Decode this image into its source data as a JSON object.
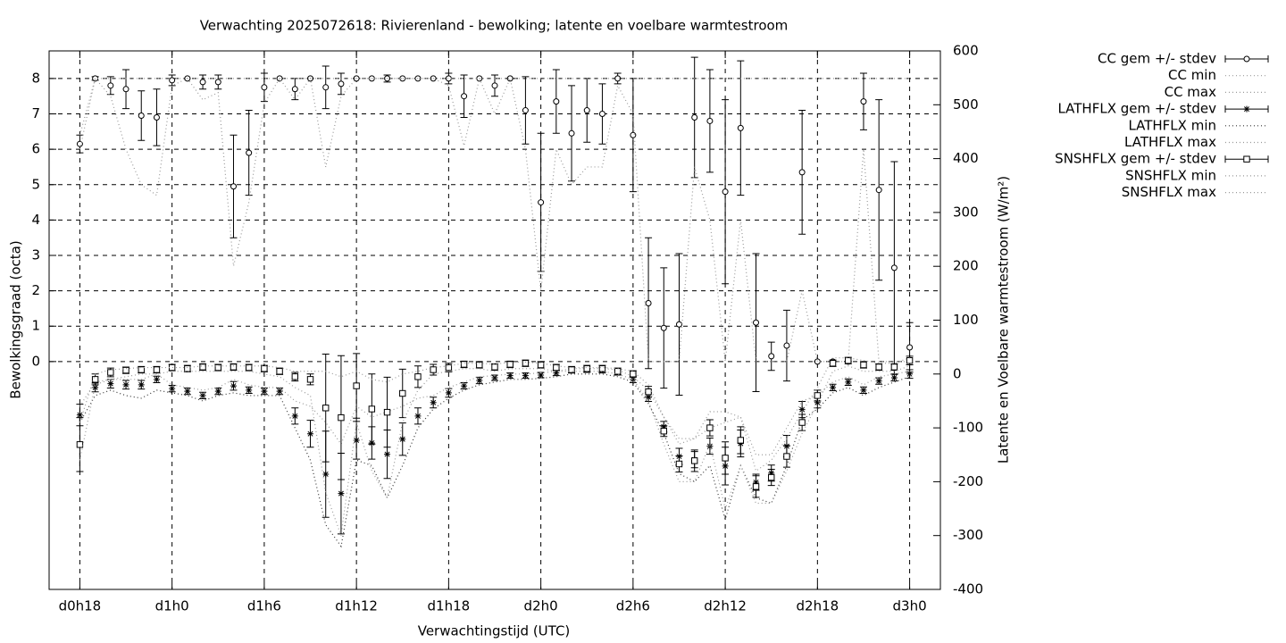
{
  "chart_data": {
    "type": "errorbar",
    "title": "Verwachting 2025072618: Rivierenland - bewolking; latente en voelbare warmtestroom",
    "xlabel": "Verwachtingstijd (UTC)",
    "ylabel": "Bewolkingsgraad (octa)",
    "y2label": "Latente en Voelbare warmtestroom (W/m²)",
    "grid": true,
    "xlim": [
      16,
      74
    ],
    "ylim": [
      -6.44,
      8.78
    ],
    "y2lim": [
      -400,
      600
    ],
    "xticks": [
      {
        "value": 18,
        "label": "d0h18"
      },
      {
        "value": 24,
        "label": "d1h0"
      },
      {
        "value": 30,
        "label": "d1h6"
      },
      {
        "value": 36,
        "label": "d1h12"
      },
      {
        "value": 42,
        "label": "d1h18"
      },
      {
        "value": 48,
        "label": "d2h0"
      },
      {
        "value": 54,
        "label": "d2h6"
      },
      {
        "value": 60,
        "label": "d2h12"
      },
      {
        "value": 66,
        "label": "d2h18"
      },
      {
        "value": 72,
        "label": "d3h0"
      }
    ],
    "yticks": [
      0,
      1,
      2,
      3,
      4,
      5,
      6,
      7,
      8
    ],
    "y2ticks": [
      -400,
      -300,
      -200,
      -100,
      0,
      100,
      200,
      300,
      400,
      500,
      600
    ],
    "x": [
      18,
      19,
      20,
      21,
      22,
      23,
      24,
      25,
      26,
      27,
      28,
      29,
      30,
      31,
      32,
      33,
      34,
      35,
      36,
      37,
      38,
      39,
      40,
      41,
      42,
      43,
      44,
      45,
      46,
      47,
      48,
      49,
      50,
      51,
      52,
      53,
      54,
      55,
      56,
      57,
      58,
      59,
      60,
      61,
      62,
      63,
      64,
      65,
      66,
      67,
      68,
      69,
      70,
      71,
      72
    ],
    "series": [
      {
        "name": "CC gem +/- stdev",
        "style": "errorbar",
        "marker": "circle",
        "color": "#000000",
        "axis": "y",
        "values": [
          6.15,
          8.0,
          7.8,
          7.7,
          6.95,
          6.9,
          7.95,
          8.0,
          7.9,
          7.9,
          4.95,
          5.9,
          7.75,
          8.0,
          7.7,
          8.0,
          7.75,
          7.85,
          8.0,
          8.0,
          8.0,
          8.0,
          8.0,
          8.0,
          8.0,
          7.5,
          8.0,
          7.8,
          8.0,
          7.1,
          4.5,
          7.35,
          6.45,
          7.1,
          7.0,
          8.0,
          6.4,
          1.65,
          0.95,
          1.05,
          6.9,
          6.8,
          4.8,
          6.6,
          1.1,
          0.15,
          0.45,
          5.35,
          0.0,
          0.0,
          0.0,
          7.35,
          4.85,
          2.65,
          0.4
        ],
        "errors": [
          0.25,
          0.05,
          0.25,
          0.55,
          0.7,
          0.8,
          0.15,
          0,
          0.2,
          0.2,
          1.45,
          1.2,
          0.4,
          0,
          0.3,
          0,
          0.6,
          0.3,
          0,
          0,
          0.1,
          0,
          0,
          0,
          0.15,
          0.6,
          0,
          0.3,
          0,
          0.95,
          1.95,
          0.9,
          1.35,
          0.9,
          0.85,
          0.15,
          1.6,
          1.85,
          1.7,
          2.0,
          1.7,
          1.45,
          2.6,
          1.9,
          1.95,
          0.4,
          1.0,
          1.75,
          0,
          0,
          0,
          0.8,
          2.55,
          3.0,
          0.7
        ]
      },
      {
        "name": "CC min",
        "style": "dotted",
        "color": "#999999",
        "axis": "y",
        "values": [
          6.0,
          8,
          7.5,
          6.0,
          5.0,
          4.7,
          7.8,
          8,
          7.4,
          7.6,
          2.7,
          4.5,
          7.3,
          8,
          7.4,
          8,
          5.5,
          7.5,
          8,
          8,
          8,
          8,
          8,
          8,
          7.8,
          6.1,
          8,
          7.0,
          8,
          6.0,
          2.0,
          6.0,
          5.0,
          5.5,
          5.5,
          7.8,
          7.0,
          0,
          0,
          0,
          5.5,
          4.0,
          0,
          4.0,
          0,
          0,
          0,
          2.0,
          0,
          0,
          0,
          6.0,
          0,
          0,
          0
        ]
      },
      {
        "name": "CC max",
        "style": "dotted",
        "color": "#999999",
        "axis": "y",
        "values": [
          6.4,
          8,
          8,
          8,
          8,
          8,
          8,
          8,
          8,
          8,
          8,
          8,
          8,
          8,
          8,
          8,
          8,
          8,
          8,
          8,
          8,
          8,
          8,
          8,
          8,
          8,
          8,
          8,
          8,
          8,
          8,
          8,
          8,
          8,
          8,
          8,
          8,
          8,
          8,
          8,
          8,
          8,
          8,
          8,
          8,
          8,
          8,
          8,
          8,
          8,
          8,
          8,
          8,
          8,
          8
        ]
      },
      {
        "name": "LATHFLX gem +/- stdev",
        "style": "errorbar",
        "marker": "star",
        "color": "#000000",
        "axis": "y2",
        "values": [
          -76,
          -25,
          -18,
          -20,
          -20,
          -10,
          -27,
          -32,
          -40,
          -32,
          -22,
          -30,
          -32,
          -32,
          -78,
          -111,
          -186,
          -222,
          -123,
          -128,
          -149,
          -121,
          -78,
          -53,
          -35,
          -22,
          -12,
          -7,
          -3,
          -3,
          -2,
          2,
          7,
          8,
          7,
          3,
          -10,
          -43,
          -98,
          -153,
          -159,
          -134,
          -171,
          -129,
          -201,
          -184,
          -134,
          -66,
          -53,
          -25,
          -15,
          -30,
          -13,
          -7,
          0
        ],
        "errors": [
          20,
          8,
          8,
          8,
          8,
          6,
          6,
          6,
          6,
          6,
          8,
          6,
          6,
          6,
          15,
          25,
          80,
          75,
          35,
          30,
          45,
          30,
          15,
          10,
          8,
          6,
          6,
          5,
          5,
          5,
          5,
          5,
          5,
          5,
          5,
          5,
          6,
          8,
          10,
          15,
          15,
          15,
          35,
          25,
          15,
          15,
          20,
          15,
          10,
          6,
          6,
          6,
          6,
          6,
          8
        ]
      },
      {
        "name": "LATHFLX min",
        "style": "dotted",
        "color": "#333333",
        "axis": "y2",
        "values": [
          -90,
          -40,
          -30,
          -40,
          -45,
          -30,
          -35,
          -40,
          -50,
          -40,
          -35,
          -40,
          -40,
          -40,
          -100,
          -160,
          -280,
          -320,
          -160,
          -170,
          -230,
          -170,
          -100,
          -65,
          -45,
          -30,
          -20,
          -15,
          -10,
          -10,
          -8,
          -5,
          0,
          0,
          0,
          -5,
          -15,
          -55,
          -110,
          -185,
          -200,
          -170,
          -270,
          -170,
          -230,
          -240,
          -170,
          -85,
          -65,
          -35,
          -25,
          -40,
          -25,
          -15,
          -5
        ]
      },
      {
        "name": "LATHFLX max",
        "style": "dotted",
        "color": "#999999",
        "axis": "y2",
        "values": [
          -60,
          -15,
          -10,
          -10,
          -10,
          0,
          -20,
          -25,
          -30,
          -25,
          -10,
          -20,
          -25,
          -25,
          -50,
          -60,
          -90,
          -130,
          -60,
          -80,
          -70,
          -60,
          -45,
          -40,
          -25,
          -15,
          -5,
          -3,
          0,
          0,
          2,
          5,
          10,
          10,
          10,
          8,
          -5,
          -30,
          -80,
          -120,
          -120,
          -100,
          -90,
          -80,
          -150,
          -150,
          -100,
          -50,
          -40,
          -15,
          -5,
          -20,
          -5,
          0,
          5
        ]
      },
      {
        "name": "SNSHFLX gem +/- stdev",
        "style": "errorbar",
        "marker": "square",
        "color": "#000000",
        "axis": "y2",
        "values": [
          -131,
          -10,
          3,
          7,
          8,
          8,
          12,
          10,
          13,
          12,
          13,
          12,
          10,
          5,
          -5,
          -10,
          -63,
          -81,
          -22,
          -65,
          -71,
          -36,
          -5,
          8,
          12,
          18,
          17,
          13,
          18,
          20,
          17,
          12,
          8,
          10,
          10,
          5,
          0,
          -33,
          -106,
          -167,
          -161,
          -100,
          -156,
          -123,
          -209,
          -192,
          -153,
          -90,
          -40,
          20,
          25,
          17,
          13,
          13,
          25
        ],
        "errors": [
          50,
          10,
          8,
          6,
          6,
          6,
          6,
          6,
          6,
          6,
          6,
          6,
          6,
          6,
          8,
          10,
          100,
          115,
          60,
          65,
          65,
          45,
          20,
          10,
          8,
          6,
          6,
          6,
          6,
          6,
          6,
          6,
          6,
          6,
          6,
          6,
          6,
          10,
          10,
          15,
          20,
          15,
          30,
          25,
          20,
          15,
          20,
          15,
          10,
          6,
          6,
          6,
          6,
          6,
          8
        ]
      },
      {
        "name": "SNSHFLX min",
        "style": "dotted",
        "color": "#999999",
        "axis": "y2",
        "values": [
          -160,
          -20,
          -10,
          -5,
          0,
          0,
          5,
          5,
          5,
          5,
          5,
          5,
          0,
          -5,
          -25,
          -40,
          -220,
          -300,
          -90,
          -180,
          -230,
          -90,
          -30,
          0,
          5,
          10,
          10,
          5,
          10,
          10,
          10,
          5,
          5,
          5,
          5,
          0,
          -10,
          -50,
          -130,
          -200,
          -200,
          -130,
          -250,
          -170,
          -240,
          -240,
          -180,
          -110,
          -55,
          5,
          15,
          5,
          5,
          5,
          15
        ]
      },
      {
        "name": "SNSHFLX max",
        "style": "dotted",
        "color": "#999999",
        "axis": "y2",
        "values": [
          -90,
          0,
          8,
          10,
          12,
          12,
          12,
          12,
          15,
          15,
          15,
          15,
          15,
          12,
          5,
          5,
          5,
          -5,
          5,
          -10,
          -15,
          0,
          5,
          12,
          15,
          20,
          20,
          18,
          22,
          22,
          20,
          15,
          12,
          12,
          12,
          10,
          5,
          -20,
          -80,
          -130,
          -120,
          -70,
          -70,
          -80,
          -180,
          -160,
          -120,
          -70,
          -25,
          30,
          30,
          25,
          20,
          20,
          30
        ]
      }
    ]
  }
}
